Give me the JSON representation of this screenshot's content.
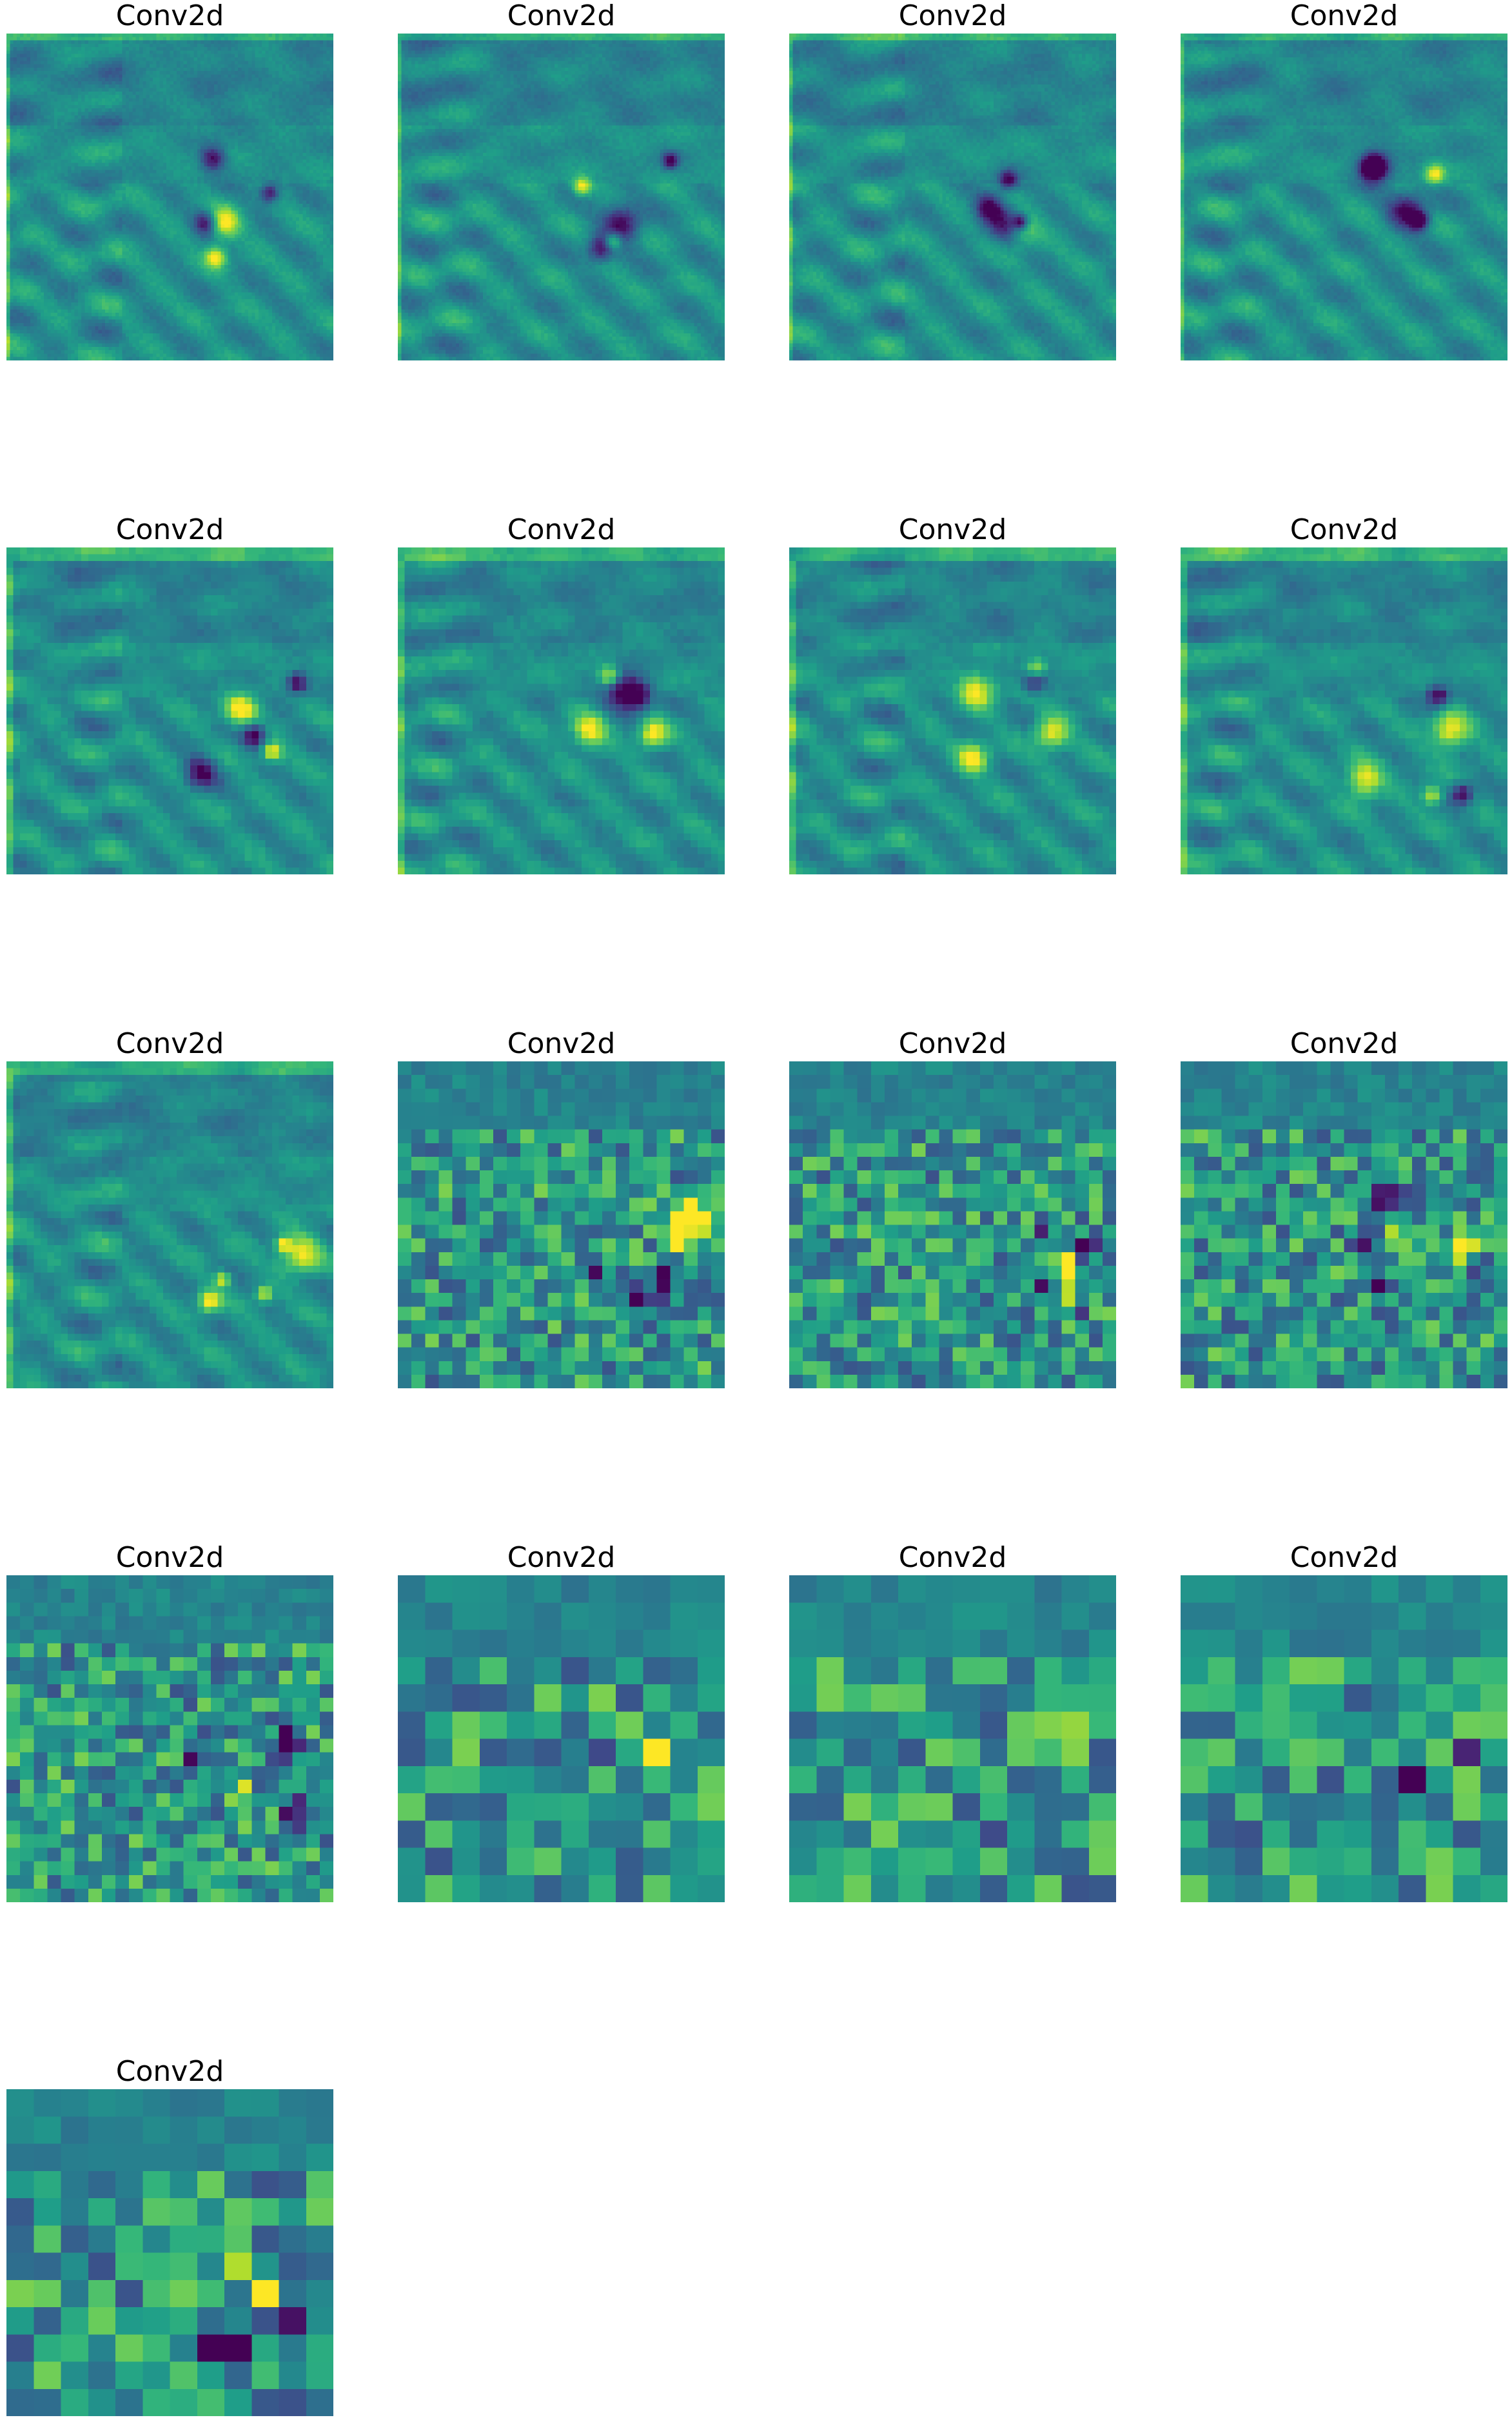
{
  "figure": {
    "colormap": "viridis",
    "columns": 4,
    "background": "#ffffff",
    "panels": [
      {
        "title": "Conv2d",
        "grid": 96
      },
      {
        "title": "Conv2d",
        "grid": 96
      },
      {
        "title": "Conv2d",
        "grid": 96
      },
      {
        "title": "Conv2d",
        "grid": 96
      },
      {
        "title": "Conv2d",
        "grid": 48
      },
      {
        "title": "Conv2d",
        "grid": 48
      },
      {
        "title": "Conv2d",
        "grid": 48
      },
      {
        "title": "Conv2d",
        "grid": 48
      },
      {
        "title": "Conv2d",
        "grid": 48
      },
      {
        "title": "Conv2d",
        "grid": 24
      },
      {
        "title": "Conv2d",
        "grid": 24
      },
      {
        "title": "Conv2d",
        "grid": 24
      },
      {
        "title": "Conv2d",
        "grid": 24
      },
      {
        "title": "Conv2d",
        "grid": 12
      },
      {
        "title": "Conv2d",
        "grid": 12
      },
      {
        "title": "Conv2d",
        "grid": 12
      },
      {
        "title": "Conv2d",
        "grid": 12
      }
    ]
  }
}
